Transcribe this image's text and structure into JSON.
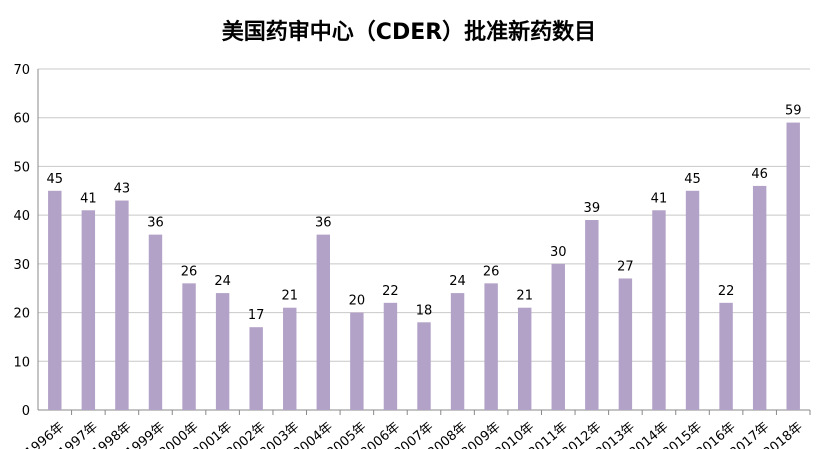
{
  "chart_data": {
    "type": "bar",
    "title": "美国药审中心（CDER）批准新药数目",
    "xlabel": "",
    "ylabel": "",
    "ylim": [
      0,
      70
    ],
    "yticks": [
      0,
      10,
      20,
      30,
      40,
      50,
      60,
      70
    ],
    "grid": true,
    "legend": "none",
    "categories": [
      "1996年",
      "1997年",
      "1998年",
      "1999年",
      "2000年",
      "2001年",
      "2002年",
      "2003年",
      "2004年",
      "2005年",
      "2006年",
      "2007年",
      "2008年",
      "2009年",
      "2010年",
      "2011年",
      "2012年",
      "2013年",
      "2014年",
      "2015年",
      "2016年",
      "2017年",
      "2018年"
    ],
    "values": [
      45,
      41,
      43,
      36,
      26,
      24,
      17,
      21,
      36,
      20,
      22,
      18,
      24,
      26,
      21,
      30,
      39,
      27,
      41,
      45,
      22,
      46,
      59
    ],
    "colors": {
      "bar": "#b3a2c7",
      "grid": "#c8c8c8",
      "axis": "#888888"
    }
  }
}
